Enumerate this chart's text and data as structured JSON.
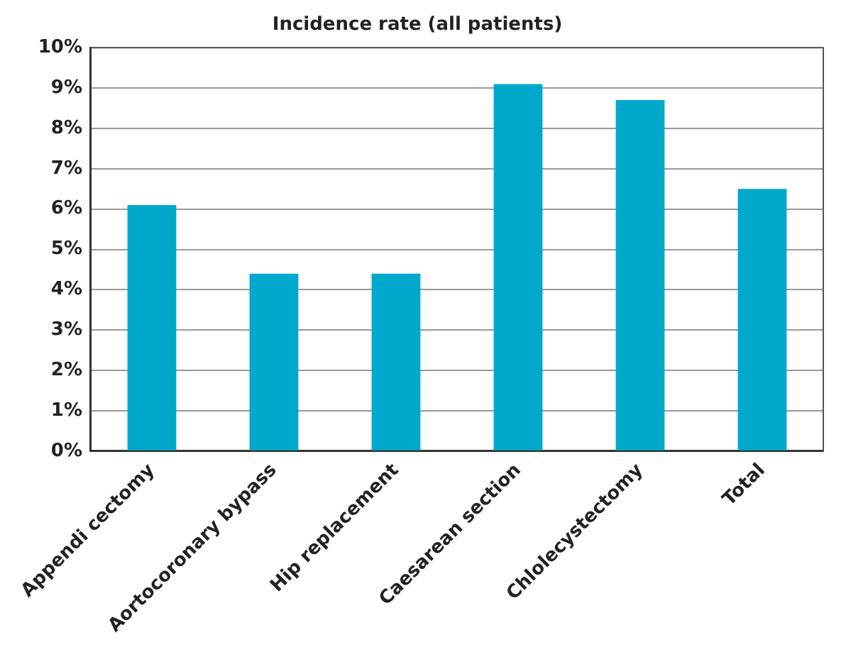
{
  "chart_data": {
    "type": "bar",
    "title": "Incidence rate (all patients)",
    "categories": [
      "Appendi cectomy",
      "Aortocoronary bypass",
      "Hip replacement",
      "Caesarean section",
      "Chlolecystectomy",
      "Total"
    ],
    "values": [
      6.1,
      4.4,
      4.4,
      9.1,
      8.7,
      6.5
    ],
    "color": "#00a9cc",
    "ylim": [
      0,
      10
    ],
    "yticks": [
      {
        "value": 0,
        "label": "0%"
      },
      {
        "value": 1,
        "label": "1%"
      },
      {
        "value": 2,
        "label": "2%"
      },
      {
        "value": 3,
        "label": "3%"
      },
      {
        "value": 4,
        "label": "4%"
      },
      {
        "value": 5,
        "label": "5%"
      },
      {
        "value": 6,
        "label": "6%"
      },
      {
        "value": 7,
        "label": "7%"
      },
      {
        "value": 8,
        "label": "8%"
      },
      {
        "value": 9,
        "label": "9%"
      },
      {
        "value": 10,
        "label": "10%"
      }
    ],
    "grid": "y",
    "legend": false
  }
}
